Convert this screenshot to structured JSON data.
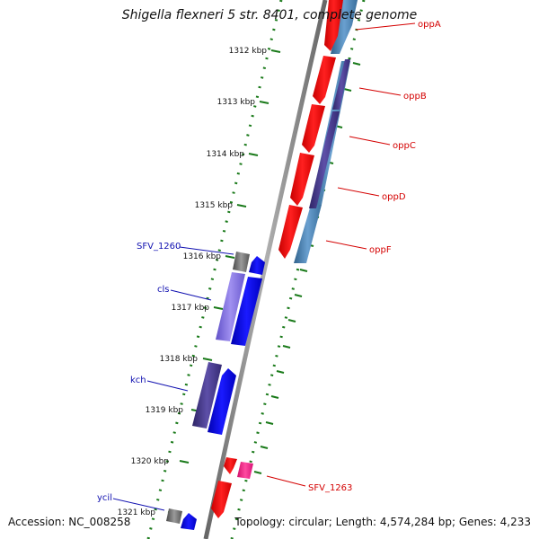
{
  "map": {
    "title": "Shigella flexneri 5 str. 8401, complete genome",
    "accession": "Accession: NC_008258",
    "summary": "Topology: circular; Length: 4,574,284 bp; Genes: 4,233"
  },
  "ticks": [
    {
      "label": "1312 kbp"
    },
    {
      "label": "1313 kbp"
    },
    {
      "label": "1314 kbp"
    },
    {
      "label": "1315 kbp"
    },
    {
      "label": "1316 kbp"
    },
    {
      "label": "1317 kbp"
    },
    {
      "label": "1318 kbp"
    },
    {
      "label": "1319 kbp"
    },
    {
      "label": "1320 kbp"
    },
    {
      "label": "1321 kbp"
    }
  ],
  "gene_labels": [
    {
      "text": "oppA"
    },
    {
      "text": "oppB"
    },
    {
      "text": "oppC"
    },
    {
      "text": "oppD"
    },
    {
      "text": "oppF"
    },
    {
      "text": "SFV_1263"
    },
    {
      "text": "SFV_1260"
    },
    {
      "text": "cls"
    },
    {
      "text": "kch"
    },
    {
      "text": "ycil"
    }
  ],
  "colors": {
    "backbone": "#888888",
    "tick_green": "#1a7a1a",
    "forward_red": "#ff0000",
    "blue": "#0000ff",
    "steel_blue": "#4682b4",
    "purple": "#4b3d8f",
    "lavender": "#7b68d8",
    "gray_gene": "#707070",
    "magenta": "#ff1493",
    "label_red": "#d40000",
    "label_blue": "#1010b0"
  }
}
